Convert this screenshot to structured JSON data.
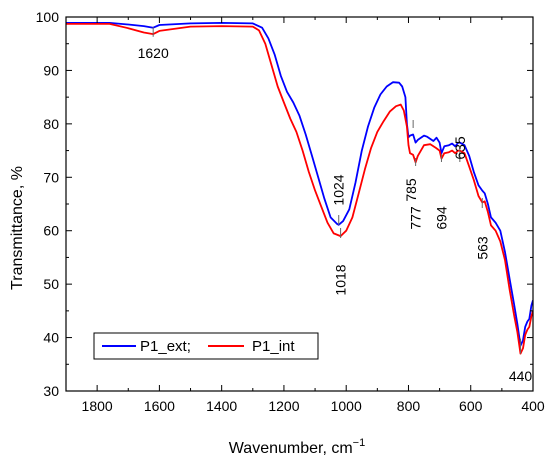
{
  "chart_data": {
    "type": "line",
    "xlabel": "Wavenumber, cm",
    "xlabel_sup": "−1",
    "ylabel": "Transmittance, %",
    "xlim": [
      1900,
      400
    ],
    "ylim": [
      30,
      100
    ],
    "x_reversed": true,
    "xticks": [
      1800,
      1600,
      1400,
      1200,
      1000,
      800,
      600,
      400
    ],
    "yticks": [
      30,
      40,
      50,
      60,
      70,
      80,
      90,
      100
    ],
    "grid": false,
    "legend_position": "bottom-left",
    "series": [
      {
        "name": "P1_ext;",
        "color": "#0000ff",
        "points": [
          [
            1900,
            98.9
          ],
          [
            1800,
            98.9
          ],
          [
            1760,
            98.9
          ],
          [
            1700,
            98.6
          ],
          [
            1650,
            98.3
          ],
          [
            1620,
            98.0
          ],
          [
            1600,
            98.5
          ],
          [
            1500,
            98.8
          ],
          [
            1400,
            98.9
          ],
          [
            1300,
            98.8
          ],
          [
            1270,
            98.0
          ],
          [
            1250,
            96
          ],
          [
            1230,
            93
          ],
          [
            1210,
            89
          ],
          [
            1190,
            86
          ],
          [
            1170,
            84
          ],
          [
            1150,
            81.5
          ],
          [
            1130,
            78
          ],
          [
            1110,
            74
          ],
          [
            1090,
            70
          ],
          [
            1070,
            66
          ],
          [
            1050,
            62.5
          ],
          [
            1030,
            61.3
          ],
          [
            1024,
            61.1
          ],
          [
            1010,
            61.8
          ],
          [
            990,
            64
          ],
          [
            970,
            69
          ],
          [
            950,
            75
          ],
          [
            930,
            79.5
          ],
          [
            910,
            83
          ],
          [
            890,
            85.5
          ],
          [
            870,
            87
          ],
          [
            850,
            87.8
          ],
          [
            830,
            87.7
          ],
          [
            820,
            87
          ],
          [
            810,
            85
          ],
          [
            805,
            80
          ],
          [
            800,
            77.5
          ],
          [
            795,
            77.8
          ],
          [
            785,
            78.0
          ],
          [
            777,
            76.5
          ],
          [
            770,
            77
          ],
          [
            750,
            77.8
          ],
          [
            740,
            77.6
          ],
          [
            720,
            76.8
          ],
          [
            710,
            77.4
          ],
          [
            700,
            76.5
          ],
          [
            694,
            74.5
          ],
          [
            685,
            75.8
          ],
          [
            670,
            76
          ],
          [
            660,
            76.3
          ],
          [
            650,
            75.8
          ],
          [
            640,
            76.5
          ],
          [
            635,
            76.5
          ],
          [
            620,
            76
          ],
          [
            605,
            74
          ],
          [
            590,
            71
          ],
          [
            575,
            68.5
          ],
          [
            563,
            67.5
          ],
          [
            555,
            67
          ],
          [
            545,
            65
          ],
          [
            535,
            62.5
          ],
          [
            520,
            61.5
          ],
          [
            505,
            60
          ],
          [
            490,
            56
          ],
          [
            475,
            51
          ],
          [
            460,
            46
          ],
          [
            450,
            42.5
          ],
          [
            440,
            38.5
          ],
          [
            432,
            39.5
          ],
          [
            425,
            42
          ],
          [
            418,
            43
          ],
          [
            412,
            43.5
          ],
          [
            405,
            46
          ],
          [
            400,
            47
          ]
        ]
      },
      {
        "name": "P1_int",
        "color": "#ff0000",
        "points": [
          [
            1900,
            98.7
          ],
          [
            1800,
            98.7
          ],
          [
            1760,
            98.7
          ],
          [
            1700,
            97.9
          ],
          [
            1650,
            97.1
          ],
          [
            1620,
            96.8
          ],
          [
            1600,
            97.4
          ],
          [
            1500,
            98.2
          ],
          [
            1400,
            98.3
          ],
          [
            1300,
            98.2
          ],
          [
            1280,
            97.5
          ],
          [
            1260,
            95
          ],
          [
            1240,
            91
          ],
          [
            1220,
            87
          ],
          [
            1200,
            84
          ],
          [
            1180,
            81
          ],
          [
            1160,
            78.5
          ],
          [
            1140,
            75
          ],
          [
            1120,
            71
          ],
          [
            1100,
            67.5
          ],
          [
            1080,
            64.5
          ],
          [
            1060,
            61.5
          ],
          [
            1040,
            59.5
          ],
          [
            1018,
            59.0
          ],
          [
            1000,
            60
          ],
          [
            980,
            62.5
          ],
          [
            960,
            67
          ],
          [
            940,
            71.5
          ],
          [
            920,
            75.5
          ],
          [
            900,
            78.5
          ],
          [
            880,
            80.5
          ],
          [
            860,
            82.3
          ],
          [
            840,
            83.3
          ],
          [
            825,
            83.6
          ],
          [
            815,
            82.5
          ],
          [
            805,
            79.5
          ],
          [
            800,
            76
          ],
          [
            795,
            74.5
          ],
          [
            785,
            74.2
          ],
          [
            777,
            72.8
          ],
          [
            770,
            74
          ],
          [
            750,
            76
          ],
          [
            730,
            76.2
          ],
          [
            712,
            75.5
          ],
          [
            700,
            75
          ],
          [
            694,
            73.5
          ],
          [
            685,
            74.5
          ],
          [
            670,
            74.7
          ],
          [
            660,
            75
          ],
          [
            650,
            74.5
          ],
          [
            640,
            75
          ],
          [
            635,
            75
          ],
          [
            620,
            74.5
          ],
          [
            605,
            72
          ],
          [
            590,
            69.5
          ],
          [
            575,
            66.5
          ],
          [
            563,
            65.3
          ],
          [
            555,
            65.5
          ],
          [
            545,
            63.5
          ],
          [
            535,
            61
          ],
          [
            520,
            60
          ],
          [
            505,
            58
          ],
          [
            490,
            54.5
          ],
          [
            475,
            49
          ],
          [
            460,
            44
          ],
          [
            450,
            41
          ],
          [
            440,
            37.0
          ],
          [
            432,
            38
          ],
          [
            425,
            40.5
          ],
          [
            418,
            41.5
          ],
          [
            412,
            42
          ],
          [
            405,
            44
          ],
          [
            400,
            45
          ]
        ]
      }
    ],
    "peak_labels": [
      {
        "text": "1620",
        "x": 1620,
        "orientation": "horizontal"
      },
      {
        "text": "1024",
        "x": 1024,
        "orientation": "vertical"
      },
      {
        "text": "1018",
        "x": 1018,
        "orientation": "vertical"
      },
      {
        "text": "785",
        "x": 785,
        "orientation": "vertical"
      },
      {
        "text": "777",
        "x": 777,
        "orientation": "vertical"
      },
      {
        "text": "694",
        "x": 694,
        "orientation": "vertical"
      },
      {
        "text": "635",
        "x": 635,
        "orientation": "vertical"
      },
      {
        "text": "563",
        "x": 563,
        "orientation": "vertical"
      },
      {
        "text": "440",
        "x": 440,
        "orientation": "horizontal"
      }
    ]
  }
}
